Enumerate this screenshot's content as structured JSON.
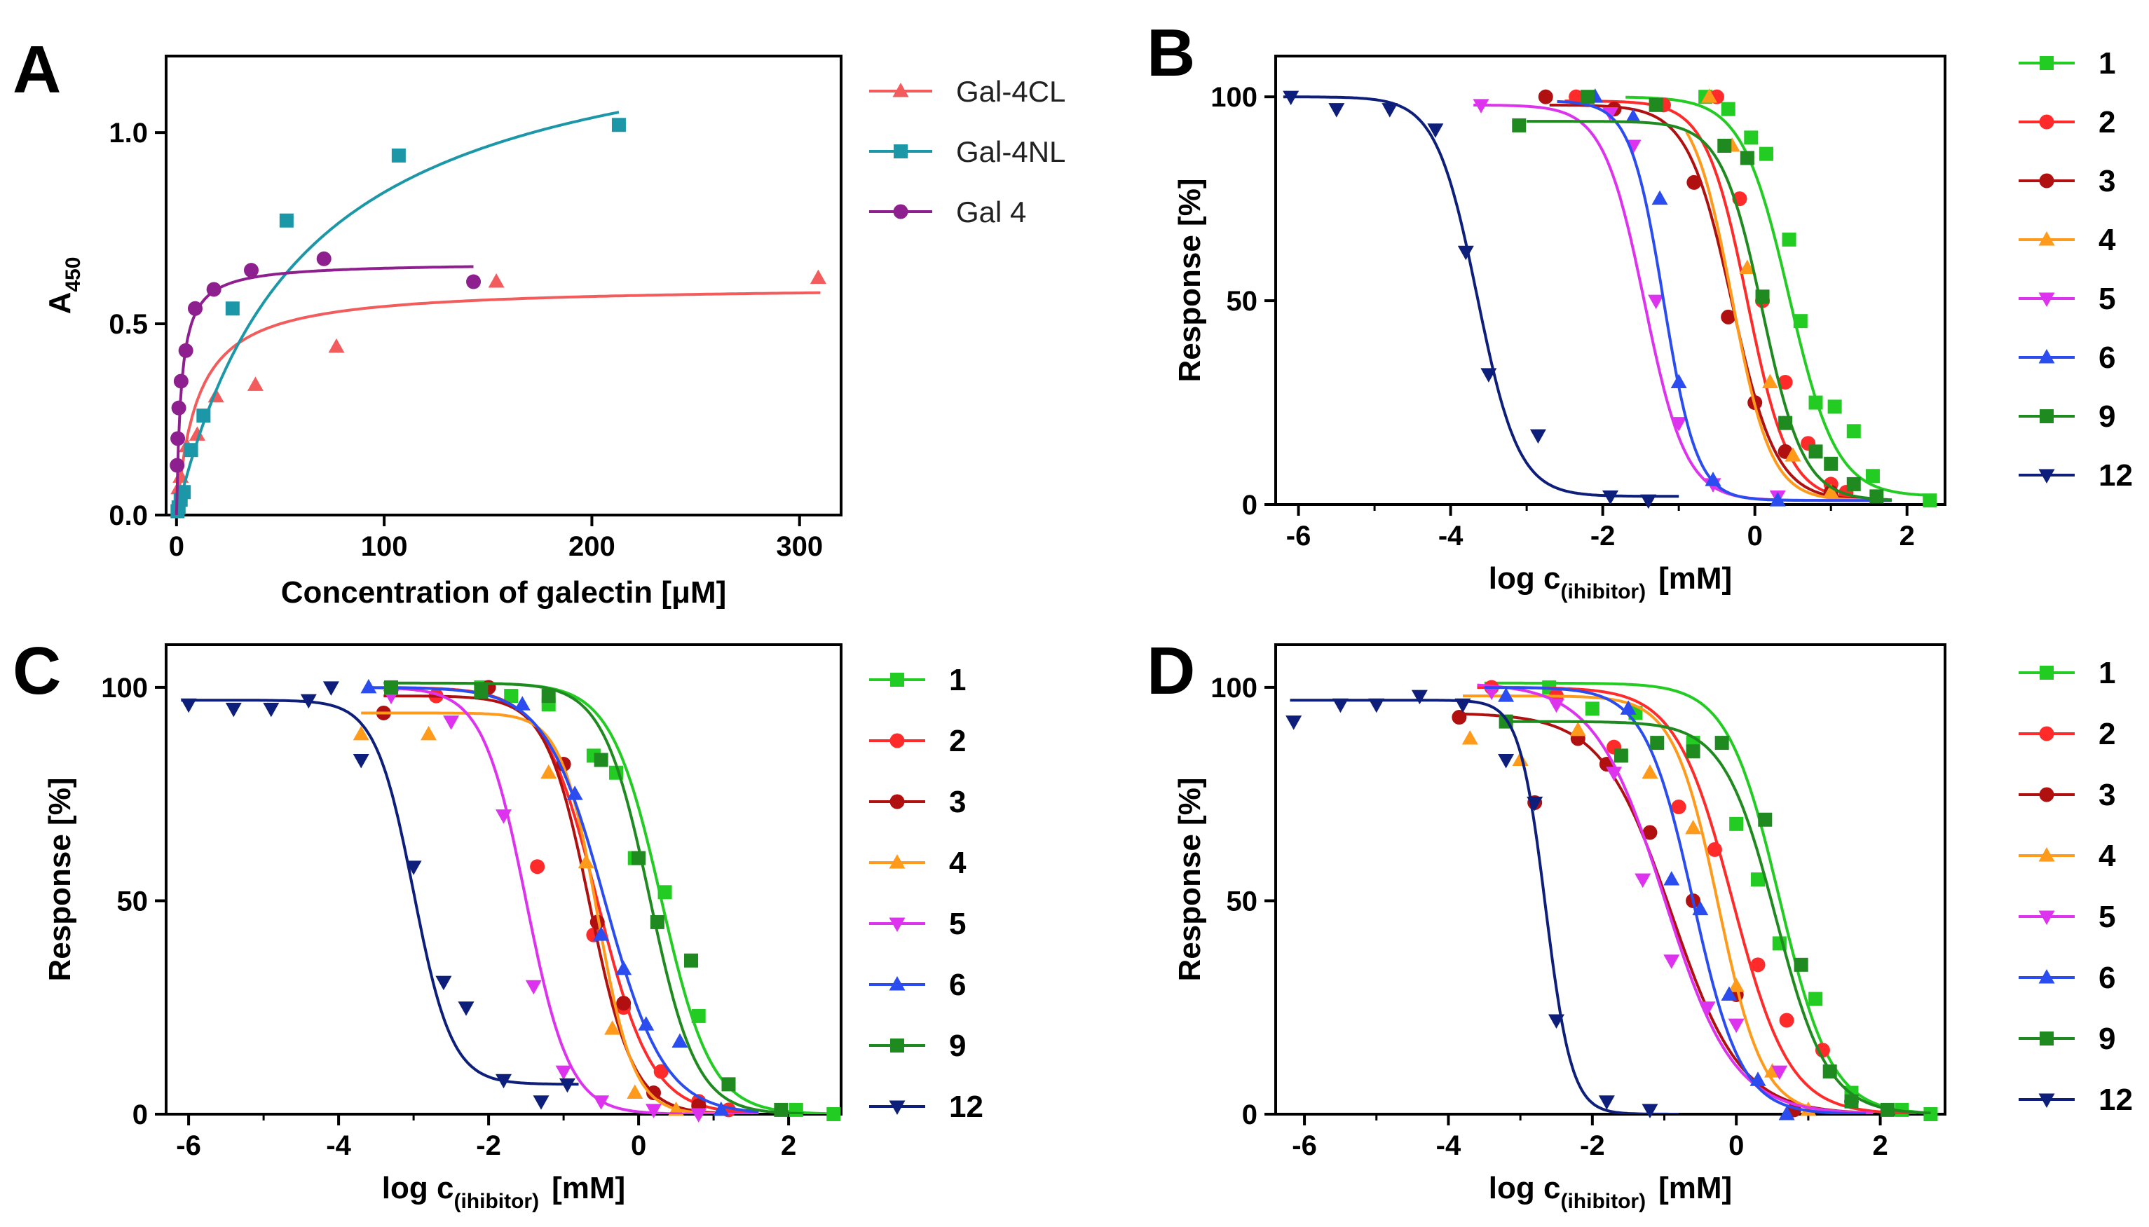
{
  "figure_labels": [
    "A",
    "B",
    "C",
    "D"
  ],
  "colors": {
    "Gal-4CL": "#f25c5c",
    "Gal-4NL": "#1b97a8",
    "Gal 4": "#8e1f8e",
    "1": "#22cc22",
    "2": "#ff2a2a",
    "3": "#b01010",
    "4": "#ff9a1a",
    "5": "#dd33ee",
    "6": "#2b4df0",
    "9": "#1f8a1f",
    "12": "#0d1f7a"
  },
  "chart_data": [
    {
      "panel": "A",
      "type": "scatter",
      "xlabel": "Concentration of galectin [μM]",
      "ylabel": "A",
      "ylabel_sub": "450",
      "xlim": [
        -5,
        320
      ],
      "ylim": [
        0,
        1.2
      ],
      "xticks": [
        0,
        100,
        200,
        300
      ],
      "xtick_labels": [
        "0",
        "100",
        "200",
        "300"
      ],
      "yticks": [
        0,
        0.5,
        1.0
      ],
      "ytick_labels": [
        "0.0",
        "0.5",
        "1.0"
      ],
      "legend": [
        "Gal-4CL",
        "Gal-4NL",
        "Gal 4"
      ],
      "series": [
        {
          "name": "Gal-4CL",
          "marker": "triangle-up",
          "bmax": 0.6,
          "kd": 10,
          "fit_max": 310,
          "x": [
            1,
            2,
            5,
            10,
            19,
            38,
            77,
            154,
            309
          ],
          "y": [
            0.07,
            0.1,
            0.18,
            0.21,
            0.31,
            0.34,
            0.44,
            0.61,
            0.62
          ]
        },
        {
          "name": "Gal-4NL",
          "marker": "square",
          "bmax": 1.35,
          "kd": 60,
          "fit_max": 213,
          "x": [
            0.5,
            1,
            2,
            3.5,
            7,
            13,
            27,
            53,
            107,
            213
          ],
          "y": [
            0.01,
            0.02,
            0.04,
            0.06,
            0.17,
            0.26,
            0.54,
            0.77,
            0.94,
            1.02
          ]
        },
        {
          "name": "Gal 4",
          "marker": "circle",
          "bmax": 0.66,
          "kd": 2.3,
          "fit_max": 143,
          "x": [
            0.3,
            0.6,
            1.1,
            2.2,
            4.5,
            9,
            18,
            36,
            71,
            143
          ],
          "y": [
            0.13,
            0.2,
            0.28,
            0.35,
            0.43,
            0.54,
            0.59,
            0.64,
            0.67,
            0.61
          ]
        }
      ]
    },
    {
      "panel": "B",
      "type": "scatter",
      "xlabel": "log c",
      "xlabel_sub": "(ihibitor)",
      "xlabel_unit": "[mM]",
      "ylabel": "Response [%]",
      "xlim": [
        -6.3,
        2.5
      ],
      "ylim": [
        0,
        110
      ],
      "xticks": [
        -6,
        -4,
        -2,
        0,
        2
      ],
      "xtick_labels": [
        "-6",
        "-4",
        "-2",
        "0",
        "2"
      ],
      "yticks": [
        0,
        50,
        100
      ],
      "ytick_labels": [
        "0",
        "50",
        "100"
      ],
      "legend": [
        "1",
        "2",
        "3",
        "4",
        "5",
        "6",
        "9",
        "12"
      ],
      "series": [
        {
          "name": "1",
          "marker": "square",
          "top": 100,
          "bottom": 2,
          "logIC50": 0.45,
          "hill": 1.4,
          "fit_min": -1.7,
          "fit_max": 2.3,
          "x": [
            -0.65,
            -0.35,
            -0.05,
            0.15,
            0.45,
            0.6,
            0.8,
            1.05,
            1.3,
            1.55,
            2.3
          ],
          "y": [
            100,
            97,
            90,
            86,
            65,
            45,
            25,
            24,
            18,
            7,
            1
          ]
        },
        {
          "name": "2",
          "marker": "circle",
          "top": 99,
          "bottom": 1,
          "logIC50": -0.1,
          "hill": 1.6,
          "fit_min": -2.5,
          "fit_max": 1.8,
          "x": [
            -2.35,
            -1.2,
            -0.5,
            -0.2,
            0.1,
            0.4,
            0.7,
            1.0,
            1.2
          ],
          "y": [
            100,
            98,
            100,
            75,
            50,
            30,
            15,
            5,
            3
          ]
        },
        {
          "name": "3",
          "marker": "circle",
          "top": 98,
          "bottom": 1,
          "logIC50": -0.3,
          "hill": 1.5,
          "fit_min": -2.7,
          "fit_max": 1.8,
          "x": [
            -2.75,
            -1.85,
            -0.8,
            -0.35,
            0.0,
            0.4,
            1.0
          ],
          "y": [
            100,
            97,
            79,
            46,
            25,
            13,
            3
          ]
        },
        {
          "name": "4",
          "marker": "triangle-up",
          "top": 100,
          "bottom": 1,
          "logIC50": -0.3,
          "hill": 1.7,
          "fit_min": -0.9,
          "fit_max": 1.8,
          "x": [
            -0.6,
            -0.3,
            -0.1,
            0.2,
            0.5,
            1.0
          ],
          "y": [
            100,
            88,
            58,
            30,
            12,
            3
          ]
        },
        {
          "name": "5",
          "marker": "triangle-down",
          "top": 98,
          "bottom": 1,
          "logIC50": -1.45,
          "hill": 1.6,
          "fit_min": -3.7,
          "fit_max": 1.8,
          "x": [
            -3.6,
            -1.9,
            -1.6,
            -1.3,
            -1.0,
            -0.55,
            0.3
          ],
          "y": [
            98,
            96,
            88,
            50,
            20,
            5,
            2
          ]
        },
        {
          "name": "6",
          "marker": "triangle-up",
          "top": 99,
          "bottom": 1,
          "logIC50": -1.2,
          "hill": 2.0,
          "fit_min": -2.6,
          "fit_max": 1.8,
          "x": [
            -2.1,
            -1.6,
            -1.25,
            -1.0,
            -0.55,
            0.3
          ],
          "y": [
            100,
            95,
            75,
            30,
            6,
            1
          ]
        },
        {
          "name": "9",
          "marker": "square",
          "top": 94,
          "bottom": 1,
          "logIC50": 0.1,
          "hill": 1.6,
          "fit_min": -3.0,
          "fit_max": 1.8,
          "x": [
            -3.1,
            -2.2,
            -1.3,
            -0.4,
            -0.1,
            0.1,
            0.4,
            0.8,
            1.0,
            1.3,
            1.6
          ],
          "y": [
            93,
            100,
            98,
            88,
            85,
            51,
            20,
            13,
            10,
            5,
            2
          ]
        },
        {
          "name": "12",
          "marker": "triangle-down",
          "top": 100,
          "bottom": 2,
          "logIC50": -3.65,
          "hill": 1.6,
          "fit_min": -6.2,
          "fit_max": -1.0,
          "x": [
            -6.1,
            -5.5,
            -4.8,
            -4.2,
            -3.8,
            -3.5,
            -2.85,
            -1.9,
            -1.4
          ],
          "y": [
            100,
            97,
            97,
            92,
            62,
            32,
            17,
            2,
            1
          ]
        }
      ]
    },
    {
      "panel": "C",
      "type": "scatter",
      "xlabel": "log c",
      "xlabel_sub": "(ihibitor)",
      "xlabel_unit": "[mM]",
      "ylabel": "Response [%]",
      "xlim": [
        -6.3,
        2.7
      ],
      "ylim": [
        0,
        110
      ],
      "xticks": [
        -6,
        -4,
        -2,
        0,
        2
      ],
      "xtick_labels": [
        "-6",
        "-4",
        "-2",
        "0",
        "2"
      ],
      "yticks": [
        0,
        50,
        100
      ],
      "ytick_labels": [
        "0",
        "50",
        "100"
      ],
      "legend": [
        "1",
        "2",
        "3",
        "4",
        "5",
        "6",
        "9",
        "12"
      ],
      "series": [
        {
          "name": "1",
          "marker": "square",
          "top": 101,
          "bottom": 0,
          "logIC50": 0.3,
          "hill": 1.3,
          "fit_min": -2.2,
          "fit_max": 2.6,
          "x": [
            -2.1,
            -1.7,
            -1.2,
            -0.6,
            -0.3,
            -0.05,
            0.35,
            0.8,
            2.1,
            2.6
          ],
          "y": [
            100,
            98,
            96,
            84,
            80,
            60,
            52,
            23,
            1,
            0
          ]
        },
        {
          "name": "2",
          "marker": "circle",
          "top": 100,
          "bottom": 0,
          "logIC50": -0.55,
          "hill": 1.2,
          "fit_min": -3.3,
          "fit_max": 1.6,
          "x": [
            -2.7,
            -1.35,
            -0.6,
            -0.2,
            0.3,
            0.8,
            1.2
          ],
          "y": [
            98,
            58,
            42,
            25,
            10,
            3,
            1
          ]
        },
        {
          "name": "3",
          "marker": "circle",
          "top": 98,
          "bottom": 0,
          "logIC50": -0.65,
          "hill": 1.5,
          "fit_min": -3.4,
          "fit_max": 1.6,
          "x": [
            -3.4,
            -2.0,
            -1.0,
            -0.55,
            -0.2,
            0.2,
            0.8
          ],
          "y": [
            94,
            100,
            82,
            45,
            26,
            5,
            2
          ]
        },
        {
          "name": "4",
          "marker": "triangle-up",
          "top": 94,
          "bottom": 0,
          "logIC50": -0.55,
          "hill": 1.8,
          "fit_min": -3.7,
          "fit_max": 1.6,
          "x": [
            -3.7,
            -2.8,
            -1.2,
            -0.7,
            -0.35,
            -0.05,
            0.5
          ],
          "y": [
            89,
            89,
            80,
            59,
            20,
            5,
            1
          ]
        },
        {
          "name": "5",
          "marker": "triangle-down",
          "top": 100,
          "bottom": 0,
          "logIC50": -1.5,
          "hill": 1.5,
          "fit_min": -3.6,
          "fit_max": 1.6,
          "x": [
            -3.3,
            -2.5,
            -1.8,
            -1.4,
            -1.0,
            -0.5,
            0.2,
            0.8
          ],
          "y": [
            98,
            92,
            70,
            30,
            10,
            3,
            1,
            0
          ]
        },
        {
          "name": "6",
          "marker": "triangle-up",
          "top": 100,
          "bottom": 0,
          "logIC50": -0.45,
          "hill": 1.1,
          "fit_min": -3.6,
          "fit_max": 1.6,
          "x": [
            -3.6,
            -1.55,
            -0.85,
            -0.5,
            -0.2,
            0.1,
            0.55,
            1.1
          ],
          "y": [
            100,
            96,
            75,
            42,
            34,
            21,
            17,
            1
          ]
        },
        {
          "name": "9",
          "marker": "square",
          "top": 101,
          "bottom": 0,
          "logIC50": 0.15,
          "hill": 1.4,
          "fit_min": -3.4,
          "fit_max": 2.2,
          "x": [
            -3.3,
            -2.1,
            -1.2,
            -0.5,
            0.0,
            0.25,
            0.7,
            1.2,
            1.9
          ],
          "y": [
            100,
            99,
            98,
            83,
            60,
            45,
            36,
            7,
            1
          ]
        },
        {
          "name": "12",
          "marker": "triangle-down",
          "top": 97,
          "bottom": 7,
          "logIC50": -3.0,
          "hill": 1.7,
          "fit_min": -6.1,
          "fit_max": -0.8,
          "x": [
            -6.0,
            -5.4,
            -4.9,
            -4.4,
            -4.1,
            -3.7,
            -3.0,
            -2.6,
            -2.3,
            -1.8,
            -1.3,
            -0.95
          ],
          "y": [
            96,
            95,
            95,
            97,
            100,
            83,
            58,
            31,
            25,
            8,
            3,
            7
          ]
        }
      ]
    },
    {
      "panel": "D",
      "type": "scatter",
      "xlabel": "log c",
      "xlabel_sub": "(ihibitor)",
      "xlabel_unit": "[mM]",
      "ylabel": "Response [%]",
      "xlim": [
        -6.4,
        2.9
      ],
      "ylim": [
        0,
        110
      ],
      "xticks": [
        -6,
        -4,
        -2,
        0,
        2
      ],
      "xtick_labels": [
        "-6",
        "-4",
        "-2",
        "0",
        "2"
      ],
      "yticks": [
        0,
        50,
        100
      ],
      "ytick_labels": [
        "0",
        "50",
        "100"
      ],
      "legend": [
        "1",
        "2",
        "3",
        "4",
        "5",
        "6",
        "9",
        "12"
      ],
      "series": [
        {
          "name": "1",
          "marker": "square",
          "top": 101,
          "bottom": 0,
          "logIC50": 0.6,
          "hill": 1.2,
          "fit_min": -3.5,
          "fit_max": 2.7,
          "x": [
            -2.6,
            -2.0,
            -1.4,
            -0.6,
            0.0,
            0.3,
            0.6,
            1.1,
            1.6,
            2.3,
            2.7
          ],
          "y": [
            100,
            95,
            94,
            87,
            68,
            55,
            40,
            27,
            5,
            1,
            0
          ]
        },
        {
          "name": "2",
          "marker": "circle",
          "top": 100,
          "bottom": 0,
          "logIC50": -0.05,
          "hill": 1.1,
          "fit_min": -3.6,
          "fit_max": 2.5,
          "x": [
            -3.4,
            -2.5,
            -1.7,
            -0.8,
            -0.3,
            0.3,
            0.7,
            1.2,
            1.6
          ],
          "y": [
            100,
            98,
            86,
            72,
            62,
            35,
            22,
            15,
            3
          ]
        },
        {
          "name": "3",
          "marker": "circle",
          "top": 94,
          "bottom": 0,
          "logIC50": -0.9,
          "hill": 0.9,
          "fit_min": -3.9,
          "fit_max": 1.8,
          "x": [
            -3.85,
            -2.8,
            -2.2,
            -1.8,
            -1.2,
            -0.6,
            0.0,
            0.8
          ],
          "y": [
            93,
            73,
            88,
            82,
            66,
            50,
            28,
            1
          ]
        },
        {
          "name": "4",
          "marker": "triangle-up",
          "top": 98,
          "bottom": 0,
          "logIC50": -0.25,
          "hill": 1.4,
          "fit_min": -3.8,
          "fit_max": 1.9,
          "x": [
            -3.7,
            -3.0,
            -2.2,
            -1.2,
            -0.6,
            0.0,
            0.5,
            1.0
          ],
          "y": [
            88,
            83,
            90,
            80,
            67,
            30,
            10,
            1
          ]
        },
        {
          "name": "5",
          "marker": "triangle-down",
          "top": 101,
          "bottom": 0,
          "logIC50": -1.0,
          "hill": 0.9,
          "fit_min": -3.6,
          "fit_max": 1.9,
          "x": [
            -3.4,
            -2.5,
            -1.7,
            -1.3,
            -0.9,
            -0.4,
            0.0,
            0.6
          ],
          "y": [
            99,
            96,
            80,
            55,
            36,
            25,
            21,
            10
          ]
        },
        {
          "name": "6",
          "marker": "triangle-up",
          "top": 100,
          "bottom": 0,
          "logIC50": -0.6,
          "hill": 1.3,
          "fit_min": -3.5,
          "fit_max": 1.8,
          "x": [
            -3.2,
            -1.5,
            -0.9,
            -0.5,
            -0.1,
            0.3,
            0.7
          ],
          "y": [
            98,
            95,
            55,
            48,
            28,
            8,
            0
          ]
        },
        {
          "name": "9",
          "marker": "square",
          "top": 92,
          "bottom": 0,
          "logIC50": 0.55,
          "hill": 1.2,
          "fit_min": -3.2,
          "fit_max": 2.7,
          "x": [
            -3.2,
            -1.6,
            -1.1,
            -0.6,
            -0.2,
            0.4,
            0.9,
            1.3,
            1.6,
            2.1
          ],
          "y": [
            92,
            84,
            87,
            85,
            87,
            69,
            35,
            10,
            3,
            1
          ]
        },
        {
          "name": "12",
          "marker": "triangle-down",
          "top": 97,
          "bottom": 0,
          "logIC50": -2.65,
          "hill": 2.4,
          "fit_min": -6.2,
          "fit_max": -0.8,
          "x": [
            -6.15,
            -5.5,
            -5.0,
            -4.4,
            -3.8,
            -3.2,
            -2.8,
            -2.5,
            -1.8,
            -1.2
          ],
          "y": [
            92,
            96,
            96,
            98,
            96,
            83,
            73,
            22,
            3,
            1
          ]
        }
      ]
    }
  ]
}
